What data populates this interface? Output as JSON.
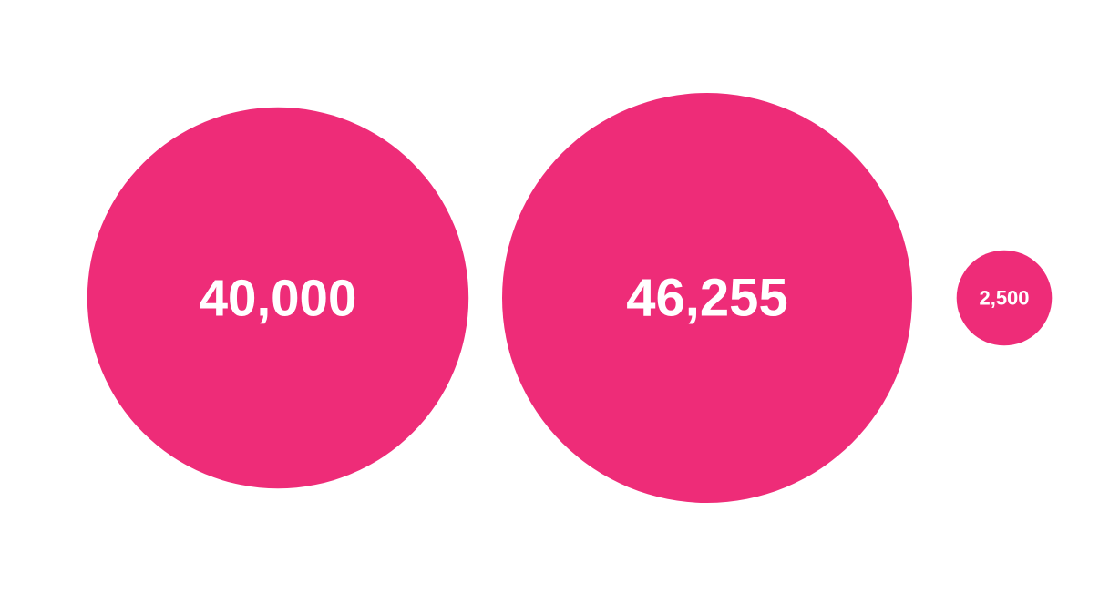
{
  "colors": {
    "background": "#ffffff",
    "bubble": "#ee2c78",
    "label": "#ffffff"
  },
  "chart_data": {
    "type": "bubble",
    "title": "",
    "values": [
      40000,
      46255,
      2500
    ],
    "labels": [
      "40,000",
      "46,255",
      "2,500"
    ],
    "legend": "none",
    "axes": "none",
    "grid": false
  }
}
